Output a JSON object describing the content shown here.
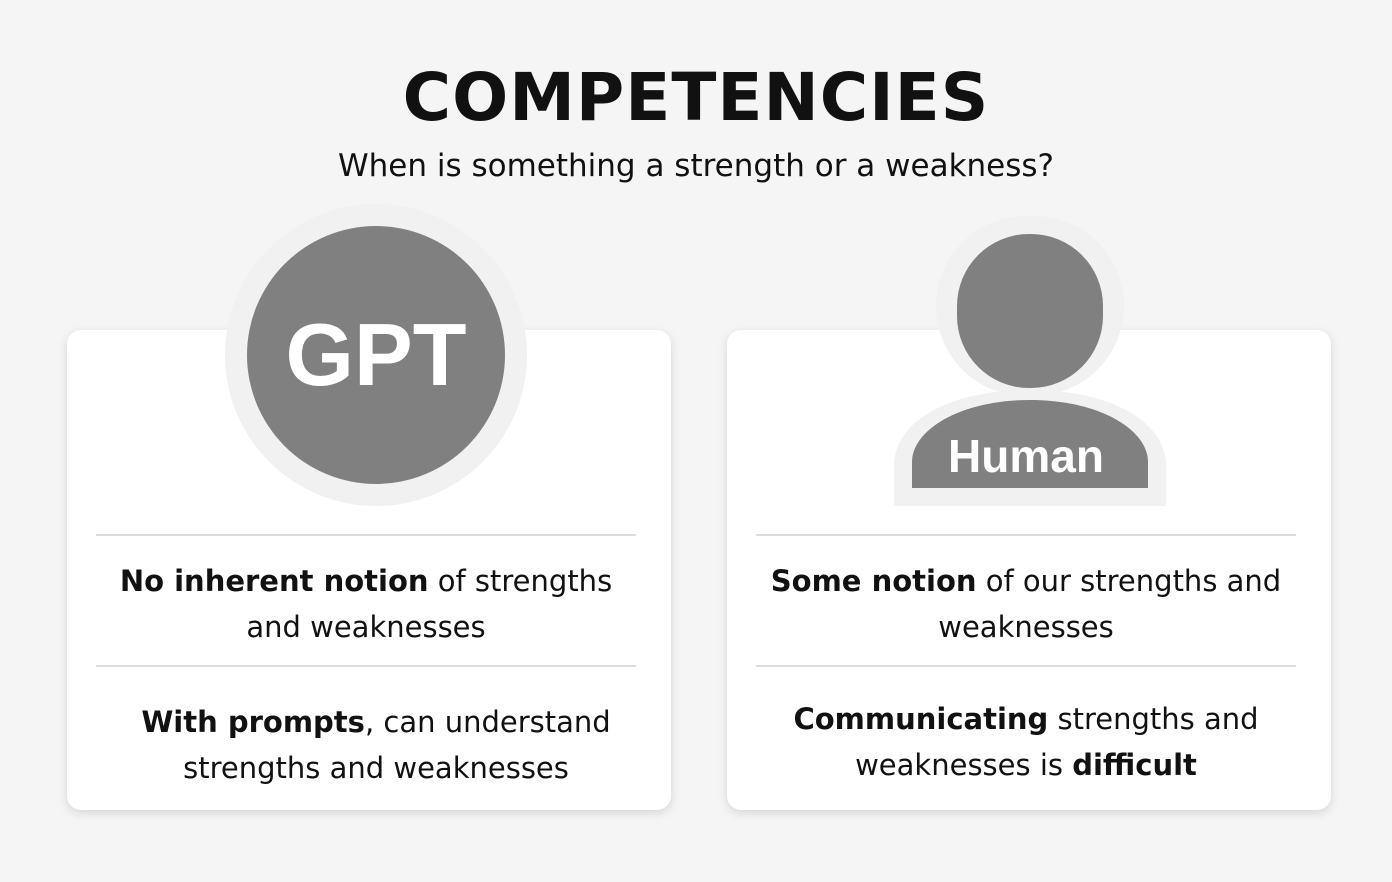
{
  "header": {
    "title": "COMPETENCIES",
    "subtitle": "When is something a strength or a weakness?"
  },
  "colors": {
    "background": "#f5f5f5",
    "card": "#ffffff",
    "avatar": "#808080",
    "divider": "#dcdcdc"
  },
  "gpt": {
    "badge": "GPT",
    "point1": {
      "bold": "No inherent notion",
      "rest": " of strengths and weaknesses"
    },
    "point2": {
      "bold": "With prompts",
      "rest": ", can understand strengths and weaknesses"
    }
  },
  "human": {
    "badge": "Human",
    "icon": "person-silhouette-icon",
    "point1": {
      "bold": "Some notion",
      "rest": " of our strengths and weaknesses"
    },
    "point2": {
      "bold": "Communicating",
      "middle": " strengths and weaknesses is ",
      "bold2": "difficult"
    }
  }
}
